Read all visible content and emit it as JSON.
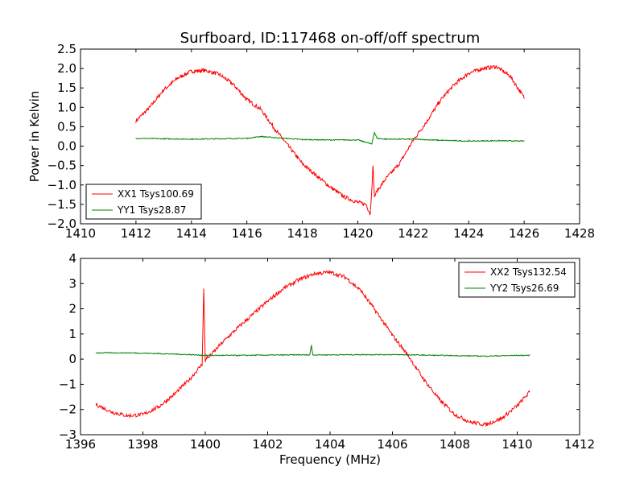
{
  "title": "Surfboard, ID:117468 on-off/off spectrum",
  "chart_data": [
    {
      "type": "line",
      "title": "Surfboard, ID:117468 on-off/off spectrum",
      "xlabel": "",
      "ylabel": "Power in Kelvin",
      "xlim": [
        1410,
        1428
      ],
      "ylim": [
        -2.0,
        2.5
      ],
      "xticks": [
        1410,
        1412,
        1414,
        1416,
        1418,
        1420,
        1422,
        1424,
        1426,
        1428
      ],
      "xtick_labels": [
        "1410",
        "1412",
        "1414",
        "1416",
        "1418",
        "1420",
        "1422",
        "1424",
        "1426",
        "1428"
      ],
      "yticks": [
        -2.0,
        -1.5,
        -1.0,
        -0.5,
        0.0,
        0.5,
        1.0,
        1.5,
        2.0,
        2.5
      ],
      "ytick_labels": [
        "−2.0",
        "−1.5",
        "−1.0",
        "−0.5",
        "0.0",
        "0.5",
        "1.0",
        "1.5",
        "2.0",
        "2.5"
      ],
      "grid": false,
      "legend_position": "lower-left",
      "series": [
        {
          "name": "XX1 Tsys100.69",
          "color": "#ff0000",
          "x": [
            1412.0,
            1412.5,
            1413.0,
            1413.5,
            1414.0,
            1414.5,
            1415.0,
            1415.5,
            1416.0,
            1416.5,
            1417.0,
            1417.5,
            1418.0,
            1418.5,
            1419.0,
            1419.5,
            1420.0,
            1420.3,
            1420.45,
            1420.55,
            1420.6,
            1420.7,
            1421.0,
            1421.5,
            1422.0,
            1422.5,
            1423.0,
            1423.5,
            1424.0,
            1424.5,
            1425.0,
            1425.5,
            1426.0
          ],
          "y": [
            0.65,
            1.0,
            1.45,
            1.75,
            1.93,
            1.95,
            1.85,
            1.6,
            1.2,
            0.95,
            0.45,
            0.0,
            -0.45,
            -0.75,
            -1.05,
            -1.3,
            -1.45,
            -1.5,
            -1.75,
            -0.5,
            -1.3,
            -1.15,
            -0.85,
            -0.45,
            0.15,
            0.65,
            1.2,
            1.6,
            1.88,
            2.0,
            2.05,
            1.8,
            1.25
          ]
        },
        {
          "name": "YY1 Tsys28.87",
          "color": "#008000",
          "x": [
            1412.0,
            1413.0,
            1414.0,
            1415.0,
            1416.0,
            1416.5,
            1417.0,
            1418.0,
            1419.0,
            1420.0,
            1420.4,
            1420.5,
            1420.6,
            1420.7,
            1421.0,
            1422.0,
            1423.0,
            1424.0,
            1425.0,
            1426.0
          ],
          "y": [
            0.2,
            0.19,
            0.18,
            0.19,
            0.2,
            0.25,
            0.22,
            0.17,
            0.16,
            0.16,
            0.08,
            0.05,
            0.35,
            0.2,
            0.18,
            0.18,
            0.15,
            0.13,
            0.14,
            0.13
          ]
        }
      ]
    },
    {
      "type": "line",
      "title": "",
      "xlabel": "Frequency (MHz)",
      "ylabel": "",
      "xlim": [
        1396,
        1412
      ],
      "ylim": [
        -3,
        4
      ],
      "xticks": [
        1396,
        1398,
        1400,
        1402,
        1404,
        1406,
        1408,
        1410,
        1412
      ],
      "xtick_labels": [
        "1396",
        "1398",
        "1400",
        "1402",
        "1404",
        "1406",
        "1408",
        "1410",
        "1412"
      ],
      "yticks": [
        -3,
        -2,
        -1,
        0,
        1,
        2,
        3,
        4
      ],
      "ytick_labels": [
        "−3",
        "−2",
        "−1",
        "0",
        "1",
        "2",
        "3",
        "4"
      ],
      "grid": false,
      "legend_position": "upper-right",
      "series": [
        {
          "name": "XX2 Tsys132.54",
          "color": "#ff0000",
          "x": [
            1396.5,
            1397.0,
            1397.5,
            1398.0,
            1398.5,
            1399.0,
            1399.5,
            1399.9,
            1399.95,
            1400.0,
            1400.05,
            1400.1,
            1400.5,
            1401.0,
            1401.5,
            1402.0,
            1402.5,
            1403.0,
            1403.5,
            1404.0,
            1404.5,
            1405.0,
            1405.5,
            1406.0,
            1406.5,
            1407.0,
            1407.5,
            1408.0,
            1408.5,
            1409.0,
            1409.5,
            1410.0,
            1410.4
          ],
          "y": [
            -1.8,
            -2.1,
            -2.25,
            -2.2,
            -1.9,
            -1.4,
            -0.8,
            -0.2,
            2.8,
            -0.1,
            0.1,
            0.05,
            0.6,
            1.2,
            1.75,
            2.3,
            2.8,
            3.15,
            3.4,
            3.45,
            3.25,
            2.7,
            1.85,
            0.95,
            0.15,
            -0.8,
            -1.6,
            -2.2,
            -2.5,
            -2.6,
            -2.35,
            -1.85,
            -1.3
          ]
        },
        {
          "name": "YY2 Tsys26.69",
          "color": "#008000",
          "x": [
            1396.5,
            1397.5,
            1398.5,
            1399.5,
            1400.0,
            1401.0,
            1402.0,
            1403.0,
            1403.35,
            1403.4,
            1403.45,
            1404.0,
            1405.0,
            1406.0,
            1407.0,
            1408.0,
            1409.0,
            1410.0,
            1410.4
          ],
          "y": [
            0.25,
            0.25,
            0.22,
            0.18,
            0.15,
            0.15,
            0.16,
            0.17,
            0.17,
            0.55,
            0.17,
            0.17,
            0.18,
            0.18,
            0.16,
            0.14,
            0.12,
            0.15,
            0.15
          ]
        }
      ]
    }
  ]
}
